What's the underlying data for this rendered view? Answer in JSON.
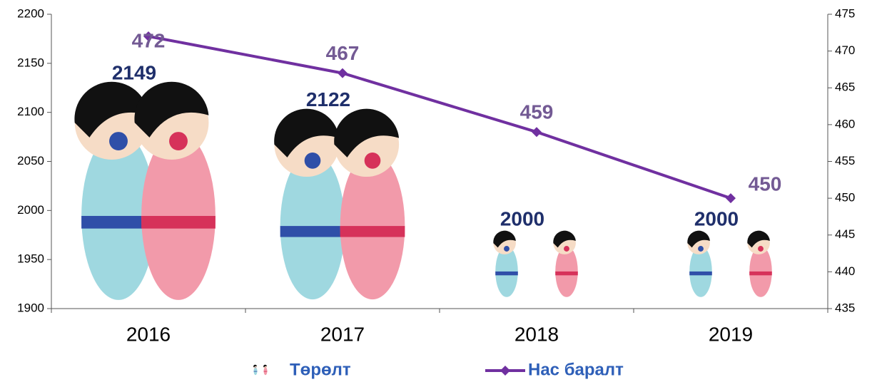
{
  "chart_data": {
    "type": "bar_line",
    "categories": [
      "2016",
      "2017",
      "2018",
      "2019"
    ],
    "series": [
      {
        "name": "Төрөлт",
        "type": "bar",
        "color": "#1f2f6b",
        "values": [
          2149,
          2122,
          2000,
          2000
        ]
      },
      {
        "name": "Нас баралт",
        "type": "line",
        "axis": "y2",
        "color": "#7030a0",
        "values": [
          472,
          467,
          459,
          450
        ]
      }
    ],
    "ylim": [
      1900,
      2200
    ],
    "yticks": [
      1900,
      1950,
      2000,
      2050,
      2100,
      2150,
      2200
    ],
    "y2lim": [
      435,
      475
    ],
    "y2ticks": [
      435,
      440,
      445,
      450,
      455,
      460,
      465,
      470,
      475
    ],
    "legend": "bottom"
  }
}
